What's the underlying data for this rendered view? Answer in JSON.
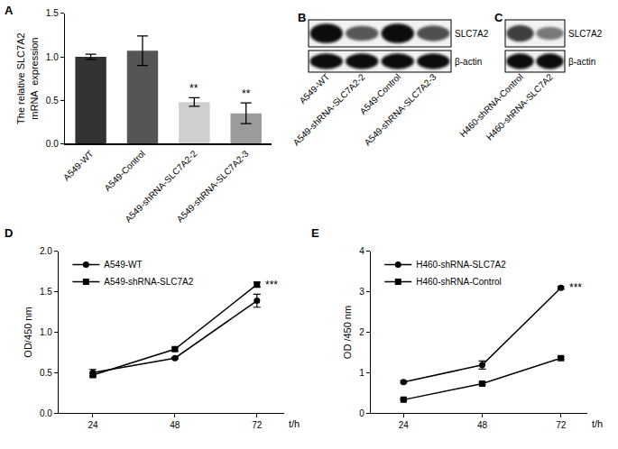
{
  "chart_data": [
    {
      "panel": "A",
      "type": "bar",
      "ylabel": "The relative SLC7A2\nmRNA  expression",
      "categories": [
        "A549-WT",
        "A549-Control",
        "A549-shRNA-SLC7A2-2",
        "A549-shRNA-SLC7A2-3"
      ],
      "values": [
        1.0,
        1.07,
        0.48,
        0.35
      ],
      "errors": [
        0.03,
        0.17,
        0.05,
        0.12
      ],
      "colors": [
        "#333333",
        "#555555",
        "#cfcfcf",
        "#9b9b9b"
      ],
      "ylim": [
        0,
        1.5
      ],
      "yticks": [
        {
          "value": 0,
          "label": "0.0"
        },
        {
          "value": 0.5,
          "label": "0.5"
        },
        {
          "value": 1,
          "label": "1.0"
        },
        {
          "value": 1.5,
          "label": "1.5"
        }
      ],
      "grid": false,
      "annotations": [
        {
          "text": "**",
          "category": "A549-shRNA-SLC7A2-2"
        },
        {
          "text": "**",
          "category": "A549-shRNA-SLC7A2-3"
        }
      ]
    },
    {
      "panel": "D",
      "type": "line",
      "xlabel": "t/h",
      "ylabel": "OD/450 nm",
      "x": [
        24,
        48,
        72
      ],
      "series": [
        {
          "name": "A549-WT",
          "color": "#000000",
          "marker": "circle",
          "values": [
            0.5,
            0.68,
            1.39
          ],
          "errors": [
            0.04,
            0.01,
            0.08
          ]
        },
        {
          "name": "A549-shRNA-SLC7A2",
          "color": "#000000",
          "marker": "square",
          "values": [
            0.47,
            0.79,
            1.59
          ],
          "errors": [
            0.02,
            0.02,
            0.03
          ]
        }
      ],
      "xlim": [
        14,
        80
      ],
      "xticks": [
        24,
        48,
        72
      ],
      "ylim": [
        0,
        2
      ],
      "yticks": [
        {
          "value": 0,
          "label": "0.0"
        },
        {
          "value": 0.5,
          "label": "0.5"
        },
        {
          "value": 1,
          "label": "1.0"
        },
        {
          "value": 1.5,
          "label": "1.5"
        },
        {
          "value": 2,
          "label": "2.0"
        }
      ],
      "legend": "upper left",
      "grid": false,
      "annotations": [
        {
          "text": "***",
          "x": 72
        }
      ]
    },
    {
      "panel": "E",
      "type": "line",
      "xlabel": "t/h",
      "ylabel": "OD /450 nm",
      "x": [
        24,
        48,
        72
      ],
      "series": [
        {
          "name": "H460-shRNA-SLC7A2",
          "color": "#000000",
          "marker": "circle",
          "values": [
            0.77,
            1.19,
            3.1
          ],
          "errors": [
            0.03,
            0.1,
            0.03
          ]
        },
        {
          "name": "H460-shRNA-Control",
          "color": "#000000",
          "marker": "square",
          "values": [
            0.33,
            0.73,
            1.36
          ],
          "errors": [
            0.02,
            0.03,
            0.03
          ]
        }
      ],
      "xlim": [
        14,
        80
      ],
      "xticks": [
        24,
        48,
        72
      ],
      "ylim": [
        0,
        4
      ],
      "yticks": [
        0,
        1,
        2,
        3,
        4
      ],
      "legend": "upper left",
      "grid": false,
      "annotations": [
        {
          "text": "***",
          "x": 72
        }
      ]
    }
  ],
  "blots": [
    {
      "panel": "B",
      "lanes": [
        "A549-WT",
        "A549-shRNA-SLC7A2-2",
        "A549-Control",
        "A549-shRNA-SLC7A2-3"
      ],
      "rows": [
        {
          "label": "SLC7A2",
          "band_intensity": [
            1.0,
            0.55,
            1.0,
            0.6
          ]
        },
        {
          "label": "β-actin",
          "band_intensity": [
            1.0,
            1.0,
            1.0,
            1.0
          ]
        }
      ]
    },
    {
      "panel": "C",
      "lanes": [
        "H460-shRNA-Control",
        "H460-shRNA-SLC7A2"
      ],
      "rows": [
        {
          "label": "SLC7A2",
          "band_intensity": [
            0.7,
            0.35
          ]
        },
        {
          "label": "β-actin",
          "band_intensity": [
            1.0,
            1.0
          ]
        }
      ]
    }
  ]
}
